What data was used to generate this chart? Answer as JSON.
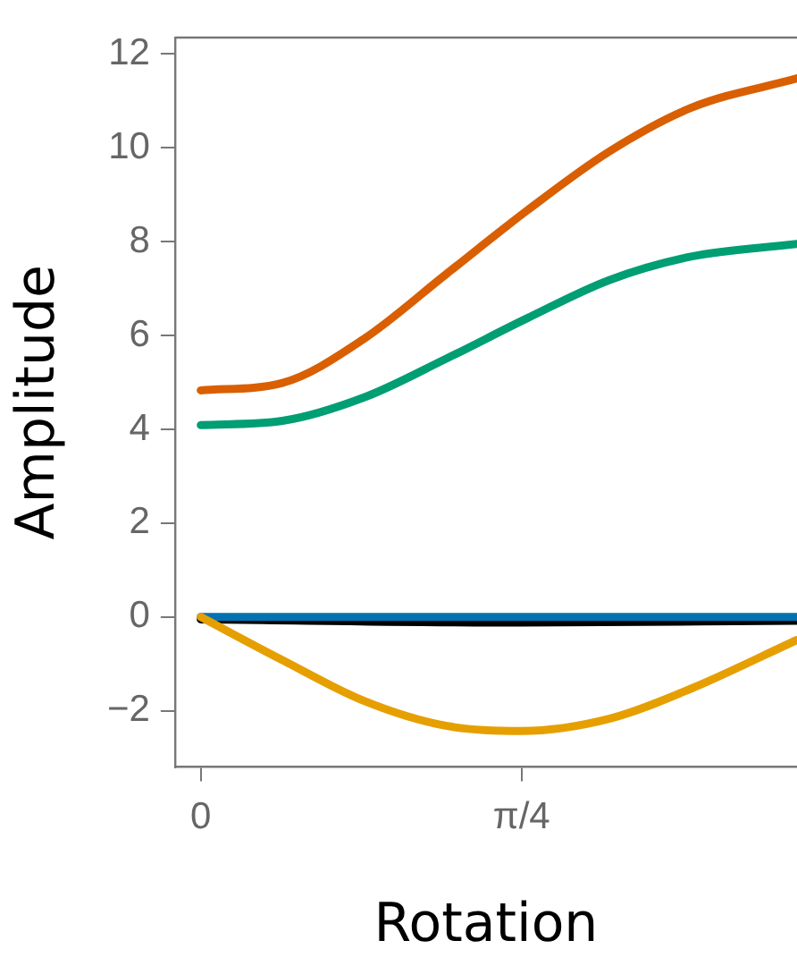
{
  "chart_data": {
    "type": "line",
    "xlabel": "Rotation",
    "ylabel": "Amplitude",
    "xlim": [
      -0.063,
      1.46
    ],
    "ylim": [
      -3.2,
      12.35
    ],
    "xticks": [
      0,
      {
        "value": 0.7854,
        "label": "π/4"
      }
    ],
    "yticks": [
      -2,
      0,
      2,
      4,
      6,
      8,
      10,
      12
    ],
    "grid": false,
    "legend": false,
    "marker": "none",
    "line_style": "solid",
    "series": [
      {
        "color": "#d95f02",
        "x": [
          0,
          0.2,
          0.4,
          0.6,
          0.8,
          1.0,
          1.2,
          1.46
        ],
        "values": [
          4.83,
          4.99,
          5.93,
          7.3,
          8.67,
          9.92,
          10.85,
          11.48
        ]
      },
      {
        "color": "#009e73",
        "x": [
          0,
          0.2,
          0.4,
          0.6,
          0.8,
          1.0,
          1.2,
          1.46
        ],
        "values": [
          4.09,
          4.18,
          4.68,
          5.5,
          6.37,
          7.18,
          7.68,
          7.95
        ]
      },
      {
        "color": "#e69f00",
        "x": [
          0,
          0.2,
          0.4,
          0.6,
          0.785,
          1.0,
          1.2,
          1.46
        ],
        "values": [
          0,
          -0.92,
          -1.79,
          -2.32,
          -2.43,
          -2.17,
          -1.53,
          -0.49
        ]
      },
      {
        "color": "#0072b2",
        "x": [
          0,
          1.46
        ],
        "values": [
          0,
          0
        ]
      },
      {
        "color": "#000000",
        "x": [
          0,
          0.785,
          1.46
        ],
        "values": [
          -0.05,
          -0.12,
          -0.08
        ]
      }
    ]
  }
}
